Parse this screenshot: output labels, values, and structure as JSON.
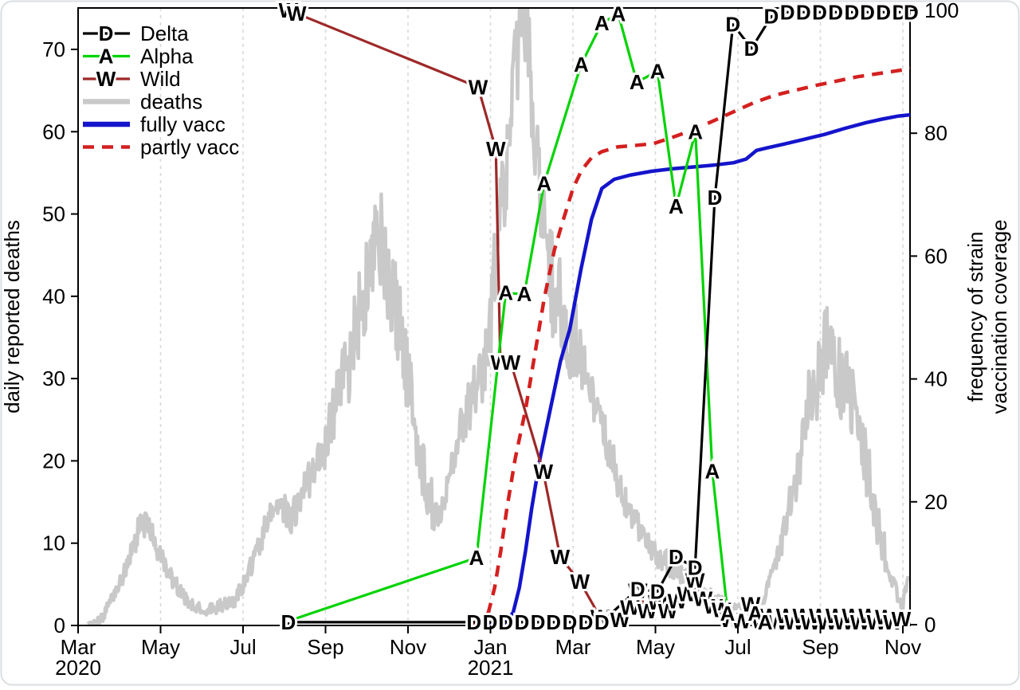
{
  "chart_data": {
    "type": "line",
    "title": "",
    "x_axis": {
      "unit": "months since Mar 2020",
      "ticks": [
        {
          "m": 0,
          "label": "Mar",
          "sub": "2020"
        },
        {
          "m": 2,
          "label": "May",
          "sub": ""
        },
        {
          "m": 4,
          "label": "Jul",
          "sub": ""
        },
        {
          "m": 6,
          "label": "Sep",
          "sub": ""
        },
        {
          "m": 8,
          "label": "Nov",
          "sub": ""
        },
        {
          "m": 10,
          "label": "Jan",
          "sub": "2021"
        },
        {
          "m": 12,
          "label": "Mar",
          "sub": ""
        },
        {
          "m": 14,
          "label": "May",
          "sub": ""
        },
        {
          "m": 16,
          "label": "Jul",
          "sub": ""
        },
        {
          "m": 18,
          "label": "Sep",
          "sub": ""
        },
        {
          "m": 20,
          "label": "Nov",
          "sub": ""
        }
      ],
      "gridline_months": [
        2,
        4,
        6,
        8,
        10,
        12,
        14,
        16,
        18,
        20
      ],
      "grid": true
    },
    "left_axis": {
      "label": "daily reported deaths",
      "ticks": [
        0,
        10,
        20,
        30,
        40,
        50,
        60,
        70
      ],
      "range": [
        0,
        75
      ]
    },
    "right_axis": {
      "label_lines": [
        "frequency of strain",
        "vaccination coverage"
      ],
      "ticks": [
        0,
        20,
        40,
        60,
        80,
        100
      ],
      "range": [
        0,
        100.4
      ]
    },
    "legend": {
      "position": "top-left",
      "items": [
        {
          "label": "Delta",
          "color": "#000000",
          "marker": "D",
          "kind": "marker-line"
        },
        {
          "label": "Alpha",
          "color": "#00d300",
          "marker": "A",
          "kind": "marker-line"
        },
        {
          "label": "Wild",
          "color": "#9e2828",
          "marker": "W",
          "kind": "marker-line"
        },
        {
          "label": "deaths",
          "color": "#c9c9c9",
          "kind": "thick-line"
        },
        {
          "label": "fully vacc",
          "color": "#1414cc",
          "kind": "thick-line"
        },
        {
          "label": "partly vacc",
          "color": "#d42020",
          "kind": "dashed-line"
        }
      ]
    },
    "series": [
      {
        "name": "Delta",
        "axis": "right",
        "color": "#000000",
        "marker": "D",
        "width": 3.2,
        "points": [
          [
            5.1,
            0.4
          ],
          [
            9.6,
            0.4
          ],
          [
            9.99,
            0.4
          ],
          [
            10.37,
            0.4
          ],
          [
            10.76,
            0.4
          ],
          [
            11.15,
            0.4
          ],
          [
            11.53,
            0.4
          ],
          [
            11.92,
            0.4
          ],
          [
            12.31,
            0.4
          ],
          [
            12.7,
            0.4
          ],
          [
            13.57,
            5.8
          ],
          [
            14.05,
            5.4
          ],
          [
            14.5,
            11.0
          ],
          [
            14.96,
            9.3
          ],
          [
            15.44,
            69.5
          ],
          [
            15.88,
            97.7
          ],
          [
            16.33,
            93.8
          ],
          [
            16.81,
            99.0
          ],
          [
            17.2,
            99.7
          ],
          [
            17.59,
            99.7
          ],
          [
            17.98,
            99.7
          ],
          [
            18.37,
            99.7
          ],
          [
            18.76,
            99.7
          ],
          [
            19.14,
            99.7
          ],
          [
            19.53,
            99.7
          ],
          [
            19.92,
            99.7
          ],
          [
            20.2,
            99.7
          ]
        ]
      },
      {
        "name": "Alpha",
        "axis": "right",
        "color": "#00d300",
        "marker": "A",
        "width": 3.2,
        "points": [
          [
            5.1,
            0.6
          ],
          [
            9.66,
            10.9
          ],
          [
            10.37,
            54.0
          ],
          [
            10.82,
            53.8
          ],
          [
            11.3,
            71.8
          ],
          [
            12.2,
            91.2
          ],
          [
            12.7,
            97.9
          ],
          [
            13.1,
            99.4
          ],
          [
            13.55,
            88.3
          ],
          [
            14.05,
            90.1
          ],
          [
            14.5,
            68.1
          ],
          [
            14.97,
            80.2
          ],
          [
            15.38,
            25.0
          ],
          [
            15.75,
            1.8
          ],
          [
            16.42,
            1.8
          ],
          [
            16.66,
            0.4
          ]
        ]
      },
      {
        "name": "Wild",
        "axis": "right",
        "color": "#9e2828",
        "marker": "W",
        "width": 3.2,
        "points": [
          [
            5.1,
            100
          ],
          [
            5.3,
            99.5
          ],
          [
            9.7,
            87.5
          ],
          [
            10.13,
            77.4
          ],
          [
            10.24,
            42.7
          ],
          [
            10.49,
            42.7
          ],
          [
            11.28,
            24.9
          ],
          [
            11.69,
            11.0
          ],
          [
            12.17,
            7.0
          ],
          [
            12.66,
            1.2
          ],
          [
            12.9,
            0.6
          ],
          [
            13.14,
            0.8
          ],
          [
            13.38,
            2.8
          ],
          [
            13.57,
            5.5
          ],
          [
            13.8,
            2.2
          ],
          [
            14.05,
            3.6
          ],
          [
            14.3,
            2.2
          ],
          [
            14.53,
            3.8
          ],
          [
            14.76,
            5.0
          ],
          [
            14.96,
            7.2
          ],
          [
            15.15,
            4.2
          ],
          [
            15.4,
            3.0
          ],
          [
            15.6,
            2.4
          ],
          [
            15.8,
            0.8
          ],
          [
            16.08,
            0.6
          ],
          [
            16.31,
            3.3
          ],
          [
            16.56,
            0.6
          ],
          [
            16.76,
            1.4
          ],
          [
            16.96,
            0.4
          ],
          [
            17.16,
            1.4
          ],
          [
            17.36,
            0.4
          ],
          [
            17.56,
            1.4
          ],
          [
            17.76,
            0.4
          ],
          [
            17.96,
            1.4
          ],
          [
            18.16,
            0.4
          ],
          [
            18.36,
            1.4
          ],
          [
            18.56,
            0.4
          ],
          [
            18.76,
            1.4
          ],
          [
            18.96,
            0.4
          ],
          [
            19.16,
            1.4
          ],
          [
            19.36,
            0.4
          ],
          [
            19.56,
            1.2
          ],
          [
            19.76,
            0.4
          ],
          [
            19.96,
            0.9
          ]
        ]
      },
      {
        "name": "fully vacc",
        "axis": "right",
        "color": "#1414cc",
        "width": 4.5,
        "points": [
          [
            9.6,
            0.2
          ],
          [
            10.35,
            0.3
          ],
          [
            10.55,
            2
          ],
          [
            10.7,
            6
          ],
          [
            10.85,
            12
          ],
          [
            11.0,
            19
          ],
          [
            11.2,
            27
          ],
          [
            11.45,
            35
          ],
          [
            11.7,
            43
          ],
          [
            11.92,
            48
          ],
          [
            12.2,
            58
          ],
          [
            12.45,
            66
          ],
          [
            12.7,
            71
          ],
          [
            13.0,
            72.5
          ],
          [
            13.4,
            73.2
          ],
          [
            13.9,
            73.8
          ],
          [
            14.4,
            74.2
          ],
          [
            14.9,
            74.5
          ],
          [
            15.4,
            74.8
          ],
          [
            15.9,
            75.2
          ],
          [
            16.2,
            75.8
          ],
          [
            16.45,
            77.2
          ],
          [
            16.7,
            77.6
          ],
          [
            17.1,
            78.2
          ],
          [
            17.6,
            79.0
          ],
          [
            18.1,
            79.8
          ],
          [
            18.6,
            80.8
          ],
          [
            19.1,
            81.7
          ],
          [
            19.5,
            82.3
          ],
          [
            19.9,
            82.8
          ],
          [
            20.18,
            83.0
          ]
        ]
      },
      {
        "name": "partly vacc",
        "axis": "right",
        "color": "#d42020",
        "width": 4.5,
        "dash": [
          14,
          10
        ],
        "points": [
          [
            9.55,
            0.2
          ],
          [
            9.8,
            0.8
          ],
          [
            9.95,
            2
          ],
          [
            10.1,
            6
          ],
          [
            10.25,
            12
          ],
          [
            10.4,
            19
          ],
          [
            10.6,
            27
          ],
          [
            10.85,
            35
          ],
          [
            11.1,
            45
          ],
          [
            11.3,
            53
          ],
          [
            11.55,
            61
          ],
          [
            11.77,
            66
          ],
          [
            12.0,
            71
          ],
          [
            12.21,
            74
          ],
          [
            12.45,
            76
          ],
          [
            12.7,
            77
          ],
          [
            13.1,
            77.8
          ],
          [
            13.5,
            78.0
          ],
          [
            13.95,
            78.3
          ],
          [
            14.4,
            79.3
          ],
          [
            14.9,
            80.5
          ],
          [
            15.4,
            82.0
          ],
          [
            15.9,
            83.5
          ],
          [
            16.4,
            85.0
          ],
          [
            16.9,
            86.2
          ],
          [
            17.4,
            87.0
          ],
          [
            17.9,
            87.8
          ],
          [
            18.4,
            88.5
          ],
          [
            18.9,
            89.2
          ],
          [
            19.4,
            89.7
          ],
          [
            19.8,
            90.1
          ],
          [
            20.18,
            90.5
          ]
        ]
      },
      {
        "name": "deaths",
        "axis": "left",
        "color": "#c9c9c9",
        "width": 4.5,
        "noisy": true,
        "points": [
          [
            0.25,
            0
          ],
          [
            0.6,
            1
          ],
          [
            1.0,
            5
          ],
          [
            1.3,
            9
          ],
          [
            1.55,
            13
          ],
          [
            1.8,
            11
          ],
          [
            2.05,
            8
          ],
          [
            2.35,
            5
          ],
          [
            2.65,
            3
          ],
          [
            2.95,
            2
          ],
          [
            3.25,
            2
          ],
          [
            3.5,
            2.5
          ],
          [
            3.8,
            3
          ],
          [
            4.1,
            6
          ],
          [
            4.4,
            10
          ],
          [
            4.7,
            14
          ],
          [
            4.9,
            15
          ],
          [
            5.15,
            13
          ],
          [
            5.45,
            16
          ],
          [
            5.75,
            19
          ],
          [
            6.0,
            22
          ],
          [
            6.2,
            26
          ],
          [
            6.45,
            30
          ],
          [
            6.7,
            35
          ],
          [
            6.95,
            41
          ],
          [
            7.2,
            45
          ],
          [
            7.35,
            46
          ],
          [
            7.55,
            42
          ],
          [
            7.75,
            38
          ],
          [
            7.9,
            33
          ],
          [
            8.05,
            28
          ],
          [
            8.25,
            22
          ],
          [
            8.45,
            17
          ],
          [
            8.65,
            13
          ],
          [
            8.85,
            14
          ],
          [
            9.0,
            18
          ],
          [
            9.2,
            22
          ],
          [
            9.4,
            26
          ],
          [
            9.6,
            28
          ],
          [
            9.8,
            30
          ],
          [
            9.95,
            34
          ],
          [
            10.05,
            40
          ],
          [
            10.2,
            46
          ],
          [
            10.3,
            52
          ],
          [
            10.45,
            58
          ],
          [
            10.55,
            65
          ],
          [
            10.7,
            72
          ],
          [
            10.8,
            75
          ],
          [
            10.9,
            72
          ],
          [
            11.0,
            65
          ],
          [
            11.1,
            58
          ],
          [
            11.2,
            52
          ],
          [
            11.3,
            48
          ],
          [
            11.45,
            44
          ],
          [
            11.55,
            40
          ],
          [
            11.7,
            38
          ],
          [
            11.85,
            35
          ],
          [
            11.95,
            34
          ],
          [
            12.05,
            35
          ],
          [
            12.2,
            33
          ],
          [
            12.3,
            30
          ],
          [
            12.45,
            28
          ],
          [
            12.55,
            26
          ],
          [
            12.7,
            24
          ],
          [
            12.85,
            22
          ],
          [
            12.95,
            20
          ],
          [
            13.1,
            18
          ],
          [
            13.2,
            16
          ],
          [
            13.35,
            14
          ],
          [
            13.45,
            13
          ],
          [
            13.6,
            12
          ],
          [
            13.75,
            11
          ],
          [
            13.85,
            10
          ],
          [
            14.0,
            9
          ],
          [
            14.1,
            8
          ],
          [
            14.25,
            8
          ],
          [
            14.35,
            7
          ],
          [
            14.5,
            7
          ],
          [
            14.65,
            6
          ],
          [
            14.75,
            6
          ],
          [
            14.9,
            5
          ],
          [
            15.0,
            5
          ],
          [
            15.15,
            4
          ],
          [
            15.3,
            4
          ],
          [
            15.4,
            3
          ],
          [
            15.55,
            3
          ],
          [
            15.65,
            3
          ],
          [
            15.8,
            2
          ],
          [
            15.9,
            2
          ],
          [
            16.05,
            2
          ],
          [
            16.2,
            2
          ],
          [
            16.3,
            2
          ],
          [
            16.45,
            2.5
          ],
          [
            16.55,
            3
          ],
          [
            16.7,
            4
          ],
          [
            16.8,
            6
          ],
          [
            16.95,
            8
          ],
          [
            17.1,
            11
          ],
          [
            17.2,
            14
          ],
          [
            17.35,
            17
          ],
          [
            17.45,
            20
          ],
          [
            17.6,
            23
          ],
          [
            17.7,
            26
          ],
          [
            17.85,
            29
          ],
          [
            18.0,
            31
          ],
          [
            18.1,
            33
          ],
          [
            18.2,
            34
          ],
          [
            18.35,
            32
          ],
          [
            18.5,
            30
          ],
          [
            18.6,
            31
          ],
          [
            18.7,
            29
          ],
          [
            18.8,
            27
          ],
          [
            18.95,
            24
          ],
          [
            19.1,
            20
          ],
          [
            19.25,
            16
          ],
          [
            19.4,
            12
          ],
          [
            19.55,
            9
          ],
          [
            19.7,
            6
          ],
          [
            19.85,
            4
          ],
          [
            20.0,
            2.5
          ],
          [
            20.18,
            6.5
          ]
        ]
      }
    ],
    "colors": {
      "grid": "#d8d8d8",
      "axis": "#000000",
      "frame": "#dadee2"
    }
  },
  "layout_note": "no title; legend inside plot top-left; dashed vertical gridlines at every labeled month tick"
}
